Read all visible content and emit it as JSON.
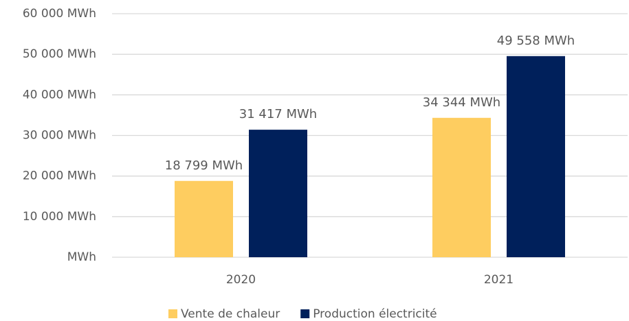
{
  "chart_data": {
    "type": "bar",
    "categories": [
      "2020",
      "2021"
    ],
    "series": [
      {
        "name": "Vente de chaleur",
        "color": "#fecd60",
        "values": [
          18799,
          34344
        ],
        "value_labels": [
          "18 799 MWh",
          "34 344 MWh"
        ]
      },
      {
        "name": "Production électricité",
        "color": "#00205b",
        "values": [
          31417,
          49558
        ],
        "value_labels": [
          "31 417 MWh",
          "49 558 MWh"
        ]
      }
    ],
    "ylim": [
      0,
      60000
    ],
    "yticks": [
      {
        "value": 0,
        "label": "MWh"
      },
      {
        "value": 10000,
        "label": "10 000 MWh"
      },
      {
        "value": 20000,
        "label": "20 000 MWh"
      },
      {
        "value": 30000,
        "label": "30 000 MWh"
      },
      {
        "value": 40000,
        "label": "40 000 MWh"
      },
      {
        "value": 50000,
        "label": "50 000 MWh"
      },
      {
        "value": 60000,
        "label": "60 000 MWh"
      }
    ],
    "grid": true,
    "legend": "bottom"
  }
}
